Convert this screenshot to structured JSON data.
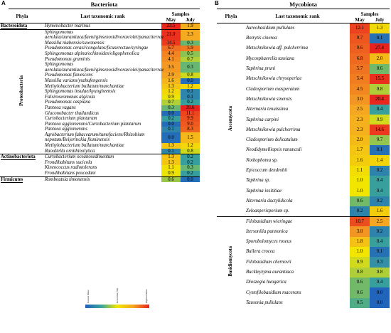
{
  "panels": [
    {
      "letter": "A",
      "title": "Bacteriota",
      "headers": {
        "phyla": "Phyla",
        "rank": "Last taxonomic rank",
        "samples": "Samples",
        "may": "May",
        "july": "July"
      },
      "groups": [
        {
          "phylum": "Bacteroidota",
          "rows": [
            {
              "taxon": "Hymenobacter marinus",
              "may": "23.5",
              "july": "1.9"
            }
          ]
        },
        {
          "phylum": "Proteobacteria",
          "rows": [
            {
              "taxon": "Sphingomonas aerolata/aurantiaca/faeni/ginsenosidivorax/olei/panaciterrae",
              "may": "21.0",
              "july": "2.3"
            },
            {
              "taxon": "Massilia niabensis/suwonensis",
              "may": "14.5",
              "july": "0.3"
            },
            {
              "taxon": "Pseudomonas cerasi/congelans/ficuserectae/syringae",
              "may": "6.7",
              "july": "5.9"
            },
            {
              "taxon": "Sphingomonas alpina/echinoides/oligophenolica",
              "may": "4.4",
              "july": "0.5"
            },
            {
              "taxon": "Pseudomonas graminis",
              "may": "4.1",
              "july": "0.7"
            },
            {
              "taxon": "Sphingomonas aerolata/aurantiaca/faeni/ginsenosidivorax/olei/panaciterrae",
              "may": "3.5",
              "july": "0.3"
            },
            {
              "taxon": "Pseudomonas flavescens",
              "may": "2.9",
              "july": "0.8"
            },
            {
              "taxon": "Massilia varians/yuzhufengensis",
              "may": "1.6",
              "july": "0.0"
            },
            {
              "taxon": "Methylobacterium bullatum/marchantiae",
              "may": "1.3",
              "july": "1.2"
            },
            {
              "taxon": "Sphingomonas insulae/kyungheensis",
              "may": "1.2",
              "july": "0.1"
            },
            {
              "taxon": "Falsiroseomonas algicola",
              "may": "0.9",
              "july": "0.1"
            },
            {
              "taxon": "Pseudomonas caspiana",
              "may": "0.7",
              "july": "0.2"
            },
            {
              "taxon": "Pantoea vagans",
              "may": "0.3",
              "july": "39.6"
            },
            {
              "taxon": "Gluconobacter thailandicus",
              "may": "0.0",
              "july": "11.1"
            },
            {
              "taxon": "Curtobacterium plantarum",
              "may": "0.2",
              "july": "9.9"
            },
            {
              "taxon": "Pantoea agglomerans/Curtobacterium plantarum",
              "may": "0.0",
              "july": "9.0"
            },
            {
              "taxon": "Pantoea agglomerans",
              "may": "0.1",
              "july": "8.3"
            },
            {
              "taxon": "Agrobacterium fabacearum/tumefaciens/Rhizobium nepotum/Beijerinckia fluminensis",
              "may": "0.0",
              "july": "1.5"
            },
            {
              "taxon": "Methylobacterium bullatum/marchantiae",
              "may": "1.3",
              "july": "1.2"
            },
            {
              "taxon": "Raoultella ornithinolytica",
              "may": "0.1",
              "july": "0.8"
            }
          ]
        },
        {
          "phylum": "Actinobacteriota",
          "rows": [
            {
              "taxon": "Curtobacterium oceanosedimentum",
              "may": "1.3",
              "july": "0.2"
            },
            {
              "taxon": "Frondihabitans sucicola",
              "may": "1.3",
              "july": "0.2"
            },
            {
              "taxon": "Kineococcus radiotolerans",
              "may": "1.1",
              "july": "0.3"
            },
            {
              "taxon": "Frondihabitans peucedani",
              "may": "0.9",
              "july": "0.2"
            }
          ]
        },
        {
          "phylum": "Firmicutes",
          "rows": [
            {
              "taxon": "Romboutsia timonensis",
              "may": "0.6",
              "july": "0.0"
            }
          ]
        }
      ]
    },
    {
      "letter": "B",
      "title": "Mycobiota",
      "headers": {
        "phyla": "Phyla",
        "rank": "Last taxonomic rank",
        "samples": "Samples",
        "may": "May",
        "july": "July"
      },
      "groups": [
        {
          "phylum": "Ascomycota",
          "rows": [
            {
              "taxon": "Aureobasidium pullulans",
              "may": "12.1",
              "july": "1.3"
            },
            {
              "taxon": "Botrytis cinerea",
              "may": "9.7",
              "july": "0.1"
            },
            {
              "taxon": "Metschnikowia aff. pulcherrima",
              "may": "9.6",
              "july": "27.4"
            },
            {
              "taxon": "Mycosphaerella tassiana",
              "may": "6.8",
              "july": "2.0"
            },
            {
              "taxon": "Taphrina pruni",
              "may": "5.7",
              "july": "0.6"
            },
            {
              "taxon": "Metschnikowia chrysoperlae",
              "may": "5.4",
              "july": "15.5"
            },
            {
              "taxon": "Cladosporium exasperatum",
              "may": "4.5",
              "july": "0.8"
            },
            {
              "taxon": "Metschnikowia sinensis",
              "may": "3.0",
              "july": "20.4"
            },
            {
              "taxon": "Alternaria tenuissima",
              "may": "2.5",
              "july": "0.4"
            },
            {
              "taxon": "Taphrina carpini",
              "may": "2.3",
              "july": "0.9"
            },
            {
              "taxon": "Metschnikowia pulcherrima",
              "may": "2.3",
              "july": "14.6"
            },
            {
              "taxon": "Cladosporium delicatulum",
              "may": "2.0",
              "july": "0.7"
            },
            {
              "taxon": "Neodidymelliopsis ranunculi",
              "may": "1.7",
              "july": "0.1"
            },
            {
              "taxon": "Nothophoma sp.",
              "may": "1.6",
              "july": "1.4"
            },
            {
              "taxon": "Epicoccum dendrobii",
              "may": "1.1",
              "july": "0.2"
            },
            {
              "taxon": "Taphrina sp.",
              "may": "1.0",
              "july": "0.4"
            },
            {
              "taxon": "Taphrina insititiae",
              "may": "1.0",
              "july": "0.4"
            },
            {
              "taxon": "Alternaria dactylidicola",
              "may": "0.6",
              "july": "0.2"
            },
            {
              "taxon": "Zeloasperisporium sp.",
              "may": "0.2",
              "july": "1.6"
            }
          ]
        },
        {
          "phylum": "Basidiomycota",
          "rows": [
            {
              "taxon": "Filobasidium wieringae",
              "may": "10.7",
              "july": "2.5"
            },
            {
              "taxon": "Itersonilia pannonica",
              "may": "3.0",
              "july": "0.2"
            },
            {
              "taxon": "Sporobolomyces roseus",
              "may": "1.8",
              "july": "0.4"
            },
            {
              "taxon": "Bullera crocea",
              "may": "1.0",
              "july": "0.1"
            },
            {
              "taxon": "Filobasidium chernovii",
              "may": "0.9",
              "july": "0.3"
            },
            {
              "taxon": "Buckleyzyma aurantiaca",
              "may": "0.8",
              "july": "0.8"
            },
            {
              "taxon": "Dioszegia hungarica",
              "may": "0.6",
              "july": "0.4"
            },
            {
              "taxon": "Cystofilobasidium macerans",
              "may": "0.6",
              "july": "0.0"
            },
            {
              "taxon": "Tausonia pullulans",
              "may": "0.5",
              "july": "0.0"
            }
          ]
        }
      ]
    }
  ],
  "legend": {
    "low": "Lowest Value",
    "mid": "Percentile (50)",
    "high": "Highest Value"
  }
}
